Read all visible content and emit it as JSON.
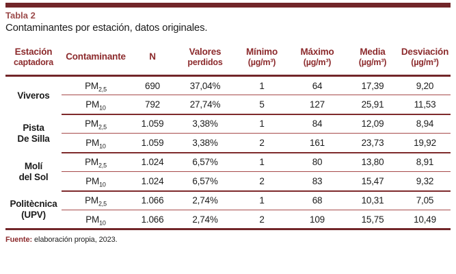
{
  "accent": {
    "bar_maroon": "#722629",
    "header_text": "#8c2b2d",
    "title_red": "#9c4b4b",
    "thin_line_red": "#a64a4a"
  },
  "caption": {
    "label": "Tabla 2",
    "subtitle": "Contaminantes por estación, datos originales."
  },
  "source": {
    "label": "Fuente:",
    "text": " elaboración propia, 2023."
  },
  "table": {
    "headers": [
      {
        "line1": "Estación",
        "line2": "captadora"
      },
      {
        "line1": "Contaminante",
        "line2": ""
      },
      {
        "line1": "N",
        "line2": ""
      },
      {
        "line1": "Valores",
        "line2": "perdidos"
      },
      {
        "line1": "Mínimo",
        "line2": "(µg/m³)"
      },
      {
        "line1": "Máximo",
        "line2": "(µg/m³)"
      },
      {
        "line1": "Media",
        "line2": "(µg/m³)"
      },
      {
        "line1": "Desviación",
        "line2": "(µg/m³)"
      }
    ],
    "groups": [
      {
        "station_line1": "Viveros",
        "station_line2": "",
        "rows": [
          {
            "pm_base": "PM",
            "pm_sub": "2,5",
            "n": "690",
            "missing": "37,04%",
            "min": "1",
            "max": "64",
            "mean": "17,39",
            "sd": "9,20"
          },
          {
            "pm_base": "PM",
            "pm_sub": "10",
            "n": "792",
            "missing": "27,74%",
            "min": "5",
            "max": "127",
            "mean": "25,91",
            "sd": "11,53"
          }
        ]
      },
      {
        "station_line1": "Pista",
        "station_line2": "De Silla",
        "rows": [
          {
            "pm_base": "PM",
            "pm_sub": "2,5",
            "n": "1.059",
            "missing": "3,38%",
            "min": "1",
            "max": "84",
            "mean": "12,09",
            "sd": "8,94"
          },
          {
            "pm_base": "PM",
            "pm_sub": "10",
            "n": "1.059",
            "missing": "3,38%",
            "min": "2",
            "max": "161",
            "mean": "23,73",
            "sd": "19,92"
          }
        ]
      },
      {
        "station_line1": "Molí",
        "station_line2": "del Sol",
        "rows": [
          {
            "pm_base": "PM",
            "pm_sub": "2,5",
            "n": "1.024",
            "missing": "6,57%",
            "min": "1",
            "max": "80",
            "mean": "13,80",
            "sd": "8,91"
          },
          {
            "pm_base": "PM",
            "pm_sub": "10",
            "n": "1.024",
            "missing": "6,57%",
            "min": "2",
            "max": "83",
            "mean": "15,47",
            "sd": "9,32"
          }
        ]
      },
      {
        "station_line1": "Politècnica",
        "station_line2": "(UPV)",
        "rows": [
          {
            "pm_base": "PM",
            "pm_sub": "2,5",
            "n": "1.066",
            "missing": "2,74%",
            "min": "1",
            "max": "68",
            "mean": "10,31",
            "sd": "7,05"
          },
          {
            "pm_base": "PM",
            "pm_sub": "10",
            "n": "1.066",
            "missing": "2,74%",
            "min": "2",
            "max": "109",
            "mean": "15,75",
            "sd": "10,49"
          }
        ]
      }
    ]
  }
}
